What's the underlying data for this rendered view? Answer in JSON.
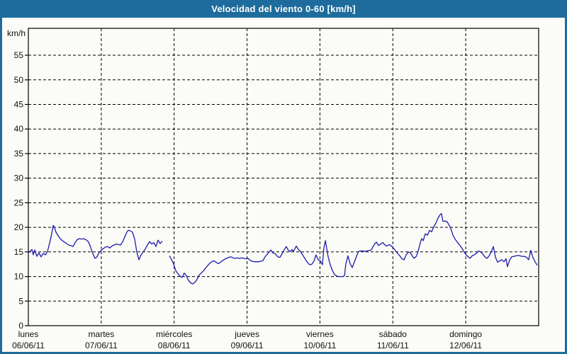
{
  "window": {
    "title_bar": "Velocidad del viento 0-60 [km/h]"
  },
  "colors": {
    "frame_blue": "#1e6c9d",
    "title_text": "#ffffff",
    "background": "#fbfbf7",
    "axis": "#000000",
    "grid": "#000000",
    "label_text": "#111111",
    "line": "#1c1cab"
  },
  "chart_data": {
    "type": "line",
    "title": "Velocidad del viento 0-60 [km/h]",
    "unit_label": "km/h",
    "ylabel": "km/h",
    "ylim": [
      0,
      60.5
    ],
    "yticks": [
      0,
      5,
      10,
      15,
      20,
      25,
      30,
      35,
      40,
      45,
      50,
      55
    ],
    "xlim_hours": [
      0,
      168
    ],
    "grid": "dashed",
    "legend_position": "none",
    "x_axis_days": [
      {
        "name": "lunes",
        "date": "06/06/11",
        "hour": 0
      },
      {
        "name": "martes",
        "date": "07/06/11",
        "hour": 24
      },
      {
        "name": "miércoles",
        "date": "08/06/11",
        "hour": 48
      },
      {
        "name": "jueves",
        "date": "09/06/11",
        "hour": 72
      },
      {
        "name": "viernes",
        "date": "10/06/11",
        "hour": 96
      },
      {
        "name": "sábado",
        "date": "11/06/11",
        "hour": 120
      },
      {
        "name": "domingo",
        "date": "12/06/11",
        "hour": 144
      }
    ],
    "series": [
      {
        "name": "velocidad-del-viento",
        "color": "#1c1cab",
        "points": [
          [
            0,
            14.8
          ],
          [
            0.7,
            15.2
          ],
          [
            1.2,
            15.5
          ],
          [
            1.6,
            14.4
          ],
          [
            2.1,
            15.4
          ],
          [
            2.8,
            14.1
          ],
          [
            3.5,
            14.8
          ],
          [
            4.2,
            14.0
          ],
          [
            4.9,
            14.7
          ],
          [
            5.6,
            14.4
          ],
          [
            6.3,
            15.1
          ],
          [
            7.0,
            16.8
          ],
          [
            7.7,
            18.7
          ],
          [
            8.2,
            20.4
          ],
          [
            8.6,
            19.9
          ],
          [
            9.1,
            19.0
          ],
          [
            9.8,
            18.3
          ],
          [
            10.5,
            17.7
          ],
          [
            11.2,
            17.3
          ],
          [
            11.9,
            17.0
          ],
          [
            12.6,
            16.7
          ],
          [
            13.3,
            16.4
          ],
          [
            14.0,
            16.3
          ],
          [
            14.7,
            16.1
          ],
          [
            15.4,
            16.9
          ],
          [
            16.1,
            17.5
          ],
          [
            16.8,
            17.7
          ],
          [
            17.5,
            17.6
          ],
          [
            18.2,
            17.7
          ],
          [
            18.9,
            17.5
          ],
          [
            19.6,
            17.2
          ],
          [
            20.3,
            16.3
          ],
          [
            21.0,
            15.0
          ],
          [
            21.5,
            14.3
          ],
          [
            21.9,
            13.7
          ],
          [
            22.6,
            14.0
          ],
          [
            23.3,
            14.9
          ],
          [
            24.0,
            15.3
          ],
          [
            24.7,
            15.7
          ],
          [
            25.4,
            16.0
          ],
          [
            26.1,
            16.1
          ],
          [
            26.8,
            15.8
          ],
          [
            27.5,
            16.2
          ],
          [
            28.2,
            16.4
          ],
          [
            28.9,
            16.6
          ],
          [
            29.6,
            16.5
          ],
          [
            30.3,
            16.4
          ],
          [
            31.0,
            17.0
          ],
          [
            31.7,
            18.0
          ],
          [
            32.4,
            19.0
          ],
          [
            32.9,
            19.4
          ],
          [
            33.6,
            19.3
          ],
          [
            34.3,
            19.0
          ],
          [
            35.0,
            17.6
          ],
          [
            35.7,
            15.0
          ],
          [
            36.4,
            13.4
          ],
          [
            37.1,
            14.4
          ],
          [
            37.8,
            15.0
          ],
          [
            38.5,
            15.6
          ],
          [
            39.2,
            16.4
          ],
          [
            39.9,
            17.1
          ],
          [
            40.6,
            16.6
          ],
          [
            41.3,
            16.9
          ],
          [
            42.0,
            16.1
          ],
          [
            42.7,
            17.4
          ],
          [
            43.4,
            16.7
          ],
          [
            44.1,
            17.2
          ],
          [
            45.2,
            null
          ],
          [
            46.4,
            14.2
          ],
          [
            47.1,
            13.5
          ],
          [
            47.8,
            12.6
          ],
          [
            48.5,
            11.2
          ],
          [
            49.2,
            10.6
          ],
          [
            49.9,
            10.1
          ],
          [
            50.6,
            9.8
          ],
          [
            51.3,
            10.7
          ],
          [
            52.0,
            10.2
          ],
          [
            52.7,
            9.2
          ],
          [
            53.4,
            8.7
          ],
          [
            54.1,
            8.5
          ],
          [
            54.8,
            8.8
          ],
          [
            55.5,
            9.4
          ],
          [
            56.2,
            10.3
          ],
          [
            56.9,
            10.7
          ],
          [
            57.6,
            11.1
          ],
          [
            58.3,
            11.7
          ],
          [
            59.0,
            12.2
          ],
          [
            59.7,
            12.7
          ],
          [
            60.4,
            13.0
          ],
          [
            61.1,
            13.2
          ],
          [
            61.8,
            12.9
          ],
          [
            62.5,
            12.6
          ],
          [
            63.2,
            12.9
          ],
          [
            63.9,
            13.2
          ],
          [
            64.6,
            13.5
          ],
          [
            65.3,
            13.7
          ],
          [
            66.0,
            13.9
          ],
          [
            66.7,
            14.0
          ],
          [
            67.4,
            13.8
          ],
          [
            68.1,
            13.7
          ],
          [
            68.8,
            13.8
          ],
          [
            69.5,
            13.7
          ],
          [
            70.2,
            13.8
          ],
          [
            70.9,
            13.7
          ],
          [
            71.6,
            13.6
          ],
          [
            72.3,
            13.7
          ],
          [
            73.0,
            13.3
          ],
          [
            73.7,
            13.1
          ],
          [
            74.4,
            13.0
          ],
          [
            75.1,
            13.0
          ],
          [
            75.8,
            13.0
          ],
          [
            76.5,
            13.1
          ],
          [
            77.2,
            13.2
          ],
          [
            77.9,
            14.0
          ],
          [
            78.9,
            14.7
          ],
          [
            79.8,
            15.4
          ],
          [
            80.5,
            14.8
          ],
          [
            81.2,
            14.7
          ],
          [
            82.1,
            14.0
          ],
          [
            82.8,
            13.9
          ],
          [
            83.5,
            14.6
          ],
          [
            84.2,
            15.4
          ],
          [
            84.9,
            16.1
          ],
          [
            85.6,
            15.3
          ],
          [
            86.3,
            15.1
          ],
          [
            86.8,
            15.5
          ],
          [
            87.3,
            15.1
          ],
          [
            88.2,
            16.2
          ],
          [
            88.9,
            15.5
          ],
          [
            89.6,
            15.1
          ],
          [
            90.3,
            14.4
          ],
          [
            91.0,
            13.7
          ],
          [
            91.7,
            13.0
          ],
          [
            92.6,
            12.4
          ],
          [
            93.3,
            12.5
          ],
          [
            94.0,
            13.1
          ],
          [
            94.7,
            14.4
          ],
          [
            95.4,
            13.4
          ],
          [
            96.1,
            13.2
          ],
          [
            96.8,
            12.4
          ],
          [
            97.3,
            15.8
          ],
          [
            97.8,
            17.3
          ],
          [
            98.2,
            15.8
          ],
          [
            98.7,
            14.0
          ],
          [
            99.4,
            12.4
          ],
          [
            100.1,
            11.2
          ],
          [
            100.8,
            10.4
          ],
          [
            101.5,
            10.1
          ],
          [
            102.2,
            10.0
          ],
          [
            102.9,
            10.0
          ],
          [
            103.6,
            10.0
          ],
          [
            104.1,
            10.2
          ],
          [
            104.5,
            12.5
          ],
          [
            105.2,
            14.2
          ],
          [
            105.9,
            12.7
          ],
          [
            106.6,
            11.8
          ],
          [
            107.3,
            12.9
          ],
          [
            108.0,
            14.1
          ],
          [
            108.7,
            15.1
          ],
          [
            109.4,
            15.2
          ],
          [
            110.1,
            15.2
          ],
          [
            110.8,
            15.1
          ],
          [
            111.5,
            15.2
          ],
          [
            112.2,
            15.3
          ],
          [
            112.9,
            15.4
          ],
          [
            113.4,
            16.0
          ],
          [
            114.1,
            16.7
          ],
          [
            114.6,
            17.0
          ],
          [
            115.3,
            16.3
          ],
          [
            116.0,
            16.6
          ],
          [
            116.7,
            16.9
          ],
          [
            117.4,
            16.4
          ],
          [
            118.1,
            16.2
          ],
          [
            118.8,
            16.5
          ],
          [
            119.5,
            16.2
          ],
          [
            120.2,
            15.8
          ],
          [
            120.9,
            15.2
          ],
          [
            121.6,
            14.7
          ],
          [
            122.3,
            14.2
          ],
          [
            123.0,
            13.6
          ],
          [
            123.7,
            13.4
          ],
          [
            124.4,
            14.4
          ],
          [
            125.1,
            15.0
          ],
          [
            125.8,
            14.8
          ],
          [
            126.5,
            14.1
          ],
          [
            127.0,
            13.7
          ],
          [
            127.7,
            14.1
          ],
          [
            128.3,
            15.1
          ],
          [
            129.0,
            16.8
          ],
          [
            129.5,
            17.7
          ],
          [
            130.0,
            17.3
          ],
          [
            130.7,
            18.7
          ],
          [
            131.4,
            18.4
          ],
          [
            132.1,
            19.4
          ],
          [
            132.8,
            19.1
          ],
          [
            133.5,
            20.1
          ],
          [
            134.2,
            20.9
          ],
          [
            134.9,
            21.9
          ],
          [
            135.6,
            22.6
          ],
          [
            136.0,
            22.8
          ],
          [
            136.5,
            21.2
          ],
          [
            137.2,
            21.3
          ],
          [
            137.9,
            21.1
          ],
          [
            138.4,
            20.6
          ],
          [
            139.1,
            19.7
          ],
          [
            139.8,
            18.4
          ],
          [
            140.5,
            17.6
          ],
          [
            141.2,
            17.0
          ],
          [
            141.9,
            16.5
          ],
          [
            142.6,
            15.9
          ],
          [
            143.3,
            15.2
          ],
          [
            144.0,
            14.5
          ],
          [
            144.7,
            14.1
          ],
          [
            145.4,
            13.7
          ],
          [
            146.1,
            14.2
          ],
          [
            146.8,
            14.4
          ],
          [
            147.5,
            14.7
          ],
          [
            148.2,
            15.2
          ],
          [
            148.9,
            15.0
          ],
          [
            149.6,
            14.6
          ],
          [
            150.3,
            14.0
          ],
          [
            151.0,
            13.7
          ],
          [
            151.7,
            14.2
          ],
          [
            152.4,
            15.0
          ],
          [
            153.1,
            16.1
          ],
          [
            153.8,
            13.9
          ],
          [
            154.5,
            12.9
          ],
          [
            155.2,
            13.2
          ],
          [
            155.9,
            13.4
          ],
          [
            156.6,
            13.0
          ],
          [
            157.3,
            13.6
          ],
          [
            157.7,
            12.0
          ],
          [
            158.4,
            13.3
          ],
          [
            159.1,
            14.0
          ],
          [
            159.8,
            14.1
          ],
          [
            160.5,
            14.2
          ],
          [
            161.2,
            14.3
          ],
          [
            161.9,
            14.2
          ],
          [
            162.6,
            14.1
          ],
          [
            163.3,
            14.1
          ],
          [
            164.0,
            13.9
          ],
          [
            164.7,
            13.4
          ],
          [
            165.4,
            15.3
          ],
          [
            166.1,
            13.9
          ],
          [
            166.8,
            13.0
          ],
          [
            167.5,
            12.3
          ]
        ]
      }
    ]
  }
}
